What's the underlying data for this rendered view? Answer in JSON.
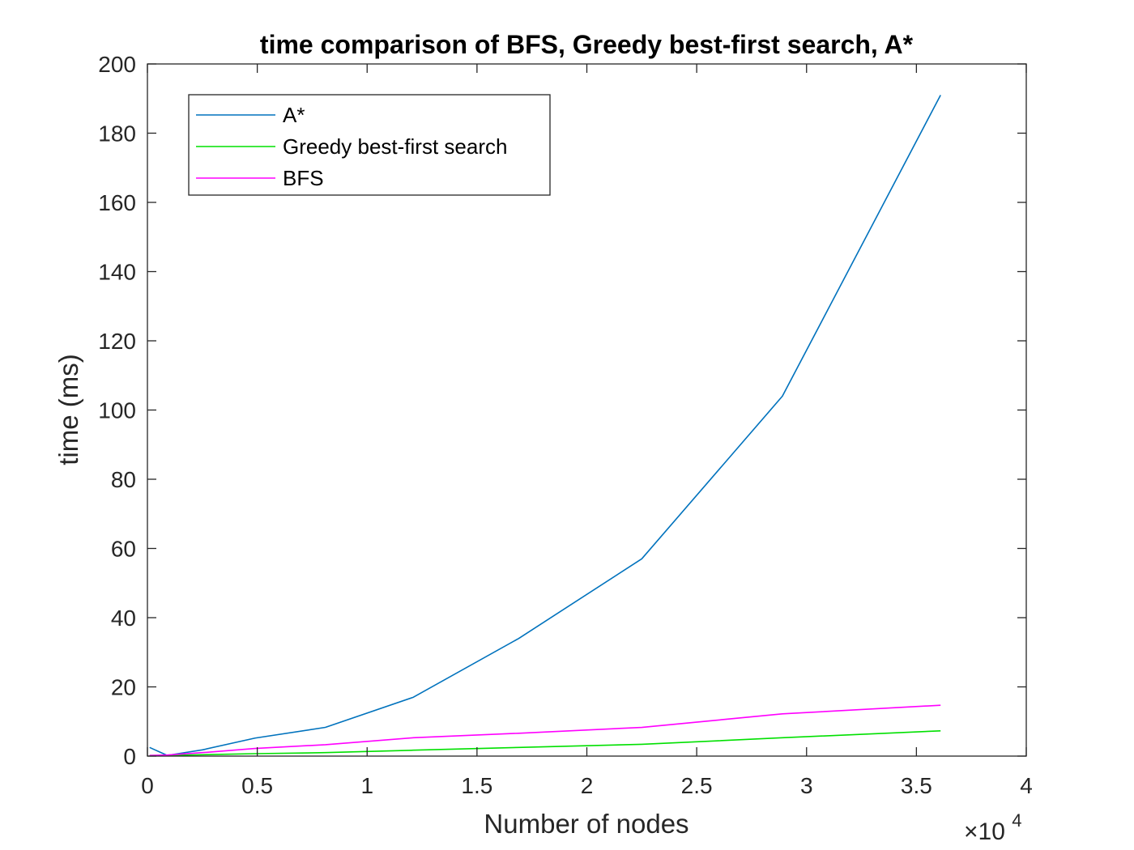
{
  "chart_data": {
    "type": "line",
    "title": "time comparison of BFS, Greedy best-first search, A*",
    "xlabel": "Number of nodes",
    "ylabel": "time (ms)",
    "x_multiplier": {
      "base": "×10",
      "exponent": "4"
    },
    "xlim": [
      0,
      4
    ],
    "ylim": [
      0,
      200
    ],
    "x_ticks": [
      0,
      0.5,
      1,
      1.5,
      2,
      2.5,
      3,
      3.5,
      4
    ],
    "x_tick_labels": [
      "0",
      "0.5",
      "1",
      "1.5",
      "2",
      "2.5",
      "3",
      "3.5",
      "4"
    ],
    "y_ticks": [
      0,
      20,
      40,
      60,
      80,
      100,
      120,
      140,
      160,
      180,
      200
    ],
    "y_tick_labels": [
      "0",
      "20",
      "40",
      "60",
      "80",
      "100",
      "120",
      "140",
      "160",
      "180",
      "200"
    ],
    "grid": false,
    "legend_position": "top-left",
    "series": [
      {
        "name": "A*",
        "color": "#0072BD",
        "x": [
          0.01,
          0.09,
          0.25,
          0.49,
          0.81,
          1.21,
          1.69,
          2.25,
          2.89,
          3.61
        ],
        "y": [
          2.5,
          0.2,
          1.8,
          5.2,
          8.3,
          17,
          34,
          57,
          104,
          191
        ]
      },
      {
        "name": "Greedy best-first search",
        "color": "#00E000",
        "x": [
          0.01,
          0.09,
          0.25,
          0.49,
          0.81,
          1.21,
          1.69,
          2.25,
          2.89,
          3.61
        ],
        "y": [
          0.2,
          0.2,
          0.4,
          0.7,
          1.0,
          1.7,
          2.5,
          3.4,
          5.3,
          7.3
        ]
      },
      {
        "name": "BFS",
        "color": "#FF00FF",
        "x": [
          0.01,
          0.09,
          0.25,
          0.49,
          0.81,
          1.21,
          1.69,
          2.25,
          2.89,
          3.61
        ],
        "y": [
          0.2,
          0.3,
          1.0,
          2.2,
          3.3,
          5.3,
          6.6,
          8.3,
          12.2,
          14.7
        ]
      }
    ]
  }
}
